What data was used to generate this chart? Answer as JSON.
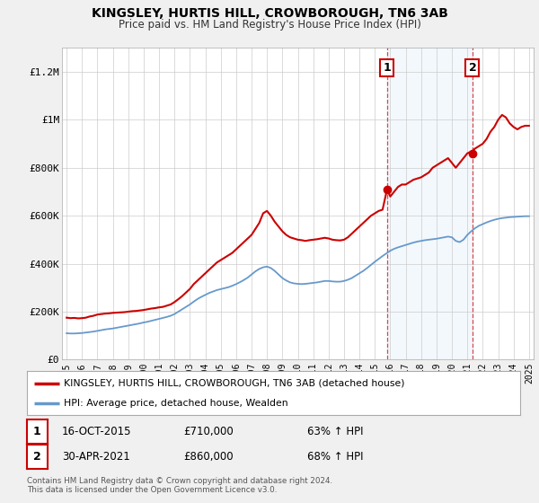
{
  "title": "KINGSLEY, HURTIS HILL, CROWBOROUGH, TN6 3AB",
  "subtitle": "Price paid vs. HM Land Registry's House Price Index (HPI)",
  "background_color": "#f0f0f0",
  "plot_bg_color": "#ffffff",
  "sale1_date": "16-OCT-2015",
  "sale1_price": "£710,000",
  "sale1_hpi": "63% ↑ HPI",
  "sale1_x": 2015.79,
  "sale1_y": 710000,
  "sale2_date": "30-APR-2021",
  "sale2_price": "£860,000",
  "sale2_hpi": "68% ↑ HPI",
  "sale2_x": 2021.33,
  "sale2_y": 860000,
  "legend_label_red": "KINGSLEY, HURTIS HILL, CROWBOROUGH, TN6 3AB (detached house)",
  "legend_label_blue": "HPI: Average price, detached house, Wealden",
  "footer": "Contains HM Land Registry data © Crown copyright and database right 2024.\nThis data is licensed under the Open Government Licence v3.0.",
  "red_line_color": "#cc0000",
  "blue_line_color": "#6699cc",
  "shade_color": "#d0e4f7",
  "ylim": [
    0,
    1300000
  ],
  "yticks": [
    0,
    200000,
    400000,
    600000,
    800000,
    1000000,
    1200000
  ],
  "ytick_labels": [
    "£0",
    "£200K",
    "£400K",
    "£600K",
    "£800K",
    "£1M",
    "£1.2M"
  ],
  "xmin": 1994.7,
  "xmax": 2025.3,
  "xticks": [
    1995,
    1996,
    1997,
    1998,
    1999,
    2000,
    2001,
    2002,
    2003,
    2004,
    2005,
    2006,
    2007,
    2008,
    2009,
    2010,
    2011,
    2012,
    2013,
    2014,
    2015,
    2016,
    2017,
    2018,
    2019,
    2020,
    2021,
    2022,
    2023,
    2024,
    2025
  ],
  "red_x": [
    1995.0,
    1995.25,
    1995.5,
    1995.75,
    1996.0,
    1996.25,
    1996.5,
    1996.75,
    1997.0,
    1997.25,
    1997.5,
    1997.75,
    1998.0,
    1998.25,
    1998.5,
    1998.75,
    1999.0,
    1999.25,
    1999.5,
    1999.75,
    2000.0,
    2000.25,
    2000.5,
    2000.75,
    2001.0,
    2001.25,
    2001.5,
    2001.75,
    2002.0,
    2002.25,
    2002.5,
    2002.75,
    2003.0,
    2003.25,
    2003.5,
    2003.75,
    2004.0,
    2004.25,
    2004.5,
    2004.75,
    2005.0,
    2005.25,
    2005.5,
    2005.75,
    2006.0,
    2006.25,
    2006.5,
    2006.75,
    2007.0,
    2007.25,
    2007.5,
    2007.75,
    2008.0,
    2008.25,
    2008.5,
    2008.75,
    2009.0,
    2009.25,
    2009.5,
    2009.75,
    2010.0,
    2010.25,
    2010.5,
    2010.75,
    2011.0,
    2011.25,
    2011.5,
    2011.75,
    2012.0,
    2012.25,
    2012.5,
    2012.75,
    2013.0,
    2013.25,
    2013.5,
    2013.75,
    2014.0,
    2014.25,
    2014.5,
    2014.75,
    2015.0,
    2015.25,
    2015.5,
    2015.79,
    2016.0,
    2016.25,
    2016.5,
    2016.75,
    2017.0,
    2017.25,
    2017.5,
    2017.75,
    2018.0,
    2018.25,
    2018.5,
    2018.75,
    2019.0,
    2019.25,
    2019.5,
    2019.75,
    2020.0,
    2020.25,
    2020.5,
    2020.75,
    2021.0,
    2021.33,
    2021.5,
    2021.75,
    2022.0,
    2022.25,
    2022.5,
    2022.75,
    2023.0,
    2023.25,
    2023.5,
    2023.75,
    2024.0,
    2024.25,
    2024.5,
    2024.75,
    2025.0
  ],
  "red_y": [
    175000,
    173000,
    174000,
    172000,
    173000,
    175000,
    180000,
    183000,
    188000,
    190000,
    192000,
    193000,
    195000,
    196000,
    197000,
    198000,
    200000,
    202000,
    203000,
    205000,
    207000,
    210000,
    213000,
    215000,
    218000,
    220000,
    225000,
    230000,
    240000,
    252000,
    265000,
    280000,
    295000,
    315000,
    330000,
    345000,
    360000,
    375000,
    390000,
    405000,
    415000,
    425000,
    435000,
    445000,
    460000,
    475000,
    490000,
    505000,
    520000,
    545000,
    570000,
    610000,
    620000,
    600000,
    575000,
    555000,
    535000,
    520000,
    510000,
    505000,
    500000,
    498000,
    495000,
    498000,
    500000,
    502000,
    505000,
    508000,
    505000,
    500000,
    498000,
    497000,
    500000,
    510000,
    525000,
    540000,
    555000,
    570000,
    585000,
    600000,
    610000,
    620000,
    625000,
    710000,
    680000,
    700000,
    720000,
    730000,
    730000,
    740000,
    750000,
    755000,
    760000,
    770000,
    780000,
    800000,
    810000,
    820000,
    830000,
    840000,
    820000,
    800000,
    820000,
    840000,
    860000,
    870000,
    880000,
    890000,
    900000,
    920000,
    950000,
    970000,
    1000000,
    1020000,
    1010000,
    985000,
    970000,
    960000,
    970000,
    975000,
    975000
  ],
  "blue_x": [
    1995.0,
    1995.25,
    1995.5,
    1995.75,
    1996.0,
    1996.25,
    1996.5,
    1996.75,
    1997.0,
    1997.25,
    1997.5,
    1997.75,
    1998.0,
    1998.25,
    1998.5,
    1998.75,
    1999.0,
    1999.25,
    1999.5,
    1999.75,
    2000.0,
    2000.25,
    2000.5,
    2000.75,
    2001.0,
    2001.25,
    2001.5,
    2001.75,
    2002.0,
    2002.25,
    2002.5,
    2002.75,
    2003.0,
    2003.25,
    2003.5,
    2003.75,
    2004.0,
    2004.25,
    2004.5,
    2004.75,
    2005.0,
    2005.25,
    2005.5,
    2005.75,
    2006.0,
    2006.25,
    2006.5,
    2006.75,
    2007.0,
    2007.25,
    2007.5,
    2007.75,
    2008.0,
    2008.25,
    2008.5,
    2008.75,
    2009.0,
    2009.25,
    2009.5,
    2009.75,
    2010.0,
    2010.25,
    2010.5,
    2010.75,
    2011.0,
    2011.25,
    2011.5,
    2011.75,
    2012.0,
    2012.25,
    2012.5,
    2012.75,
    2013.0,
    2013.25,
    2013.5,
    2013.75,
    2014.0,
    2014.25,
    2014.5,
    2014.75,
    2015.0,
    2015.25,
    2015.5,
    2015.75,
    2016.0,
    2016.25,
    2016.5,
    2016.75,
    2017.0,
    2017.25,
    2017.5,
    2017.75,
    2018.0,
    2018.25,
    2018.5,
    2018.75,
    2019.0,
    2019.25,
    2019.5,
    2019.75,
    2020.0,
    2020.25,
    2020.5,
    2020.75,
    2021.0,
    2021.25,
    2021.5,
    2021.75,
    2022.0,
    2022.25,
    2022.5,
    2022.75,
    2023.0,
    2023.25,
    2023.5,
    2023.75,
    2024.0,
    2024.25,
    2024.5,
    2024.75,
    2025.0
  ],
  "blue_y": [
    110000,
    109000,
    109000,
    110000,
    111000,
    113000,
    115000,
    117000,
    120000,
    123000,
    126000,
    128000,
    130000,
    133000,
    136000,
    139000,
    142000,
    145000,
    148000,
    151000,
    155000,
    158000,
    162000,
    166000,
    170000,
    174000,
    178000,
    183000,
    190000,
    200000,
    210000,
    220000,
    230000,
    242000,
    253000,
    262000,
    270000,
    278000,
    284000,
    290000,
    294000,
    298000,
    302000,
    308000,
    315000,
    323000,
    332000,
    342000,
    355000,
    368000,
    378000,
    385000,
    388000,
    382000,
    370000,
    355000,
    340000,
    330000,
    322000,
    318000,
    316000,
    315000,
    316000,
    318000,
    320000,
    322000,
    325000,
    328000,
    328000,
    326000,
    325000,
    325000,
    328000,
    333000,
    340000,
    350000,
    360000,
    370000,
    382000,
    395000,
    408000,
    420000,
    432000,
    443000,
    454000,
    462000,
    468000,
    473000,
    478000,
    483000,
    488000,
    492000,
    495000,
    498000,
    500000,
    502000,
    504000,
    507000,
    510000,
    513000,
    510000,
    495000,
    490000,
    500000,
    520000,
    535000,
    548000,
    558000,
    565000,
    572000,
    578000,
    583000,
    587000,
    590000,
    592000,
    594000,
    595000,
    596000,
    597000,
    598000,
    598000
  ]
}
